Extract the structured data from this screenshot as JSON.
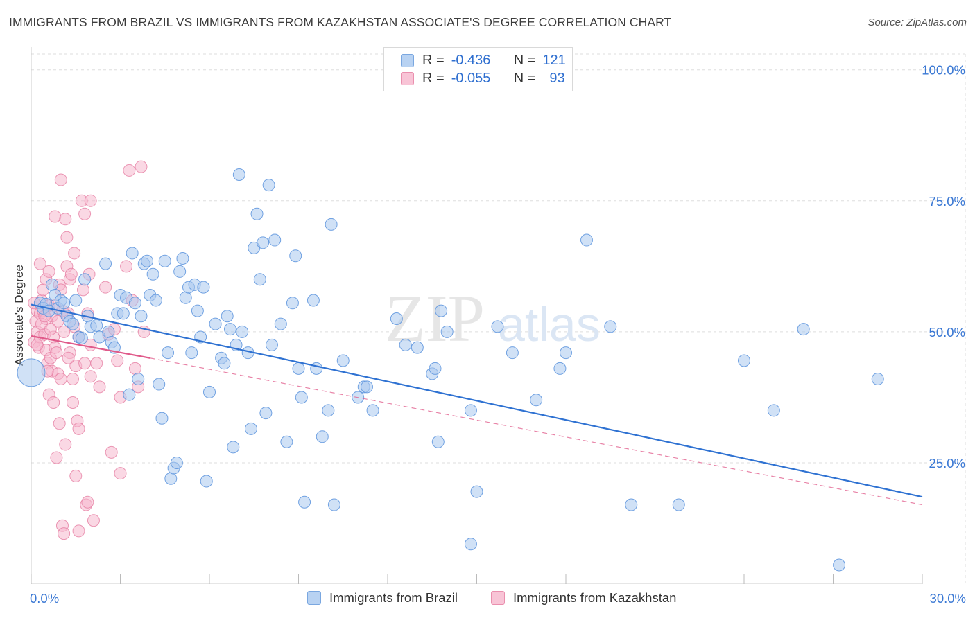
{
  "title": "IMMIGRANTS FROM BRAZIL VS IMMIGRANTS FROM KAZAKHSTAN ASSOCIATE'S DEGREE CORRELATION CHART",
  "source": "Source: ZipAtlas.com",
  "watermark": {
    "zip": "ZIP",
    "atlas": "atlas"
  },
  "colors": {
    "brazil_fill": "#a9c8ef",
    "brazil_stroke": "#5b93dd",
    "brazil_line": "#2f72d2",
    "kaz_fill": "#f5b8cd",
    "kaz_stroke": "#e67ea3",
    "kaz_line": "#e05a8a",
    "axis_text": "#3a78d4",
    "grid": "#dddddd"
  },
  "legend": {
    "r_label": "R =",
    "n_label": "N =",
    "brazil": {
      "r": "-0.436",
      "n": "121"
    },
    "kazakhstan": {
      "r": "-0.055",
      "n": "93"
    }
  },
  "series_labels": {
    "brazil": "Immigrants from Brazil",
    "kazakhstan": "Immigrants from Kazakhstan"
  },
  "chart_data": {
    "type": "scatter",
    "title": "IMMIGRANTS FROM BRAZIL VS IMMIGRANTS FROM KAZAKHSTAN ASSOCIATE'S DEGREE CORRELATION CHART",
    "xlabel": "",
    "ylabel": "Associate's Degree",
    "xlim": [
      0,
      30
    ],
    "ylim": [
      2,
      103
    ],
    "x_tick_labels": [
      "0.0%",
      "30.0%"
    ],
    "y_ticks": [
      25,
      50,
      75,
      100
    ],
    "y_tick_labels": [
      "25.0%",
      "50.0%",
      "75.0%",
      "100.0%"
    ],
    "grid": true,
    "series": [
      {
        "name": "Immigrants from Brazil",
        "trend": {
          "x": [
            0,
            30
          ],
          "y": [
            55.2,
            18.5
          ]
        },
        "points": [
          [
            0.0,
            42.2
          ],
          [
            0.3,
            55.5
          ],
          [
            0.4,
            54.5
          ],
          [
            0.5,
            55.3
          ],
          [
            0.6,
            54.0
          ],
          [
            0.7,
            59.0
          ],
          [
            0.8,
            57.0
          ],
          [
            0.9,
            54.5
          ],
          [
            1.0,
            56.0
          ],
          [
            1.1,
            55.5
          ],
          [
            1.2,
            53.0
          ],
          [
            1.3,
            52.0
          ],
          [
            1.4,
            51.5
          ],
          [
            1.5,
            56.0
          ],
          [
            1.6,
            49.0
          ],
          [
            1.7,
            48.8
          ],
          [
            1.8,
            60.0
          ],
          [
            1.9,
            53.0
          ],
          [
            2.0,
            51.0
          ],
          [
            2.2,
            51.2
          ],
          [
            2.3,
            49.0
          ],
          [
            2.5,
            63.0
          ],
          [
            2.6,
            50.0
          ],
          [
            2.7,
            48.0
          ],
          [
            2.8,
            47.0
          ],
          [
            2.9,
            53.5
          ],
          [
            3.0,
            57.0
          ],
          [
            3.1,
            53.5
          ],
          [
            3.2,
            56.5
          ],
          [
            3.3,
            38.0
          ],
          [
            3.4,
            65.0
          ],
          [
            3.5,
            55.5
          ],
          [
            3.6,
            41.0
          ],
          [
            3.7,
            53.0
          ],
          [
            3.8,
            63.0
          ],
          [
            3.9,
            63.5
          ],
          [
            4.0,
            57.0
          ],
          [
            4.1,
            61.0
          ],
          [
            4.2,
            56.0
          ],
          [
            4.3,
            40.0
          ],
          [
            4.4,
            33.5
          ],
          [
            4.5,
            63.5
          ],
          [
            4.6,
            46.0
          ],
          [
            4.7,
            22.0
          ],
          [
            4.8,
            24.0
          ],
          [
            4.9,
            25.0
          ],
          [
            5.0,
            61.5
          ],
          [
            5.1,
            64.0
          ],
          [
            5.2,
            56.5
          ],
          [
            5.3,
            58.5
          ],
          [
            5.4,
            46.0
          ],
          [
            5.5,
            59.0
          ],
          [
            5.6,
            54.0
          ],
          [
            5.7,
            49.0
          ],
          [
            5.8,
            58.5
          ],
          [
            5.9,
            21.5
          ],
          [
            6.0,
            38.5
          ],
          [
            6.2,
            51.5
          ],
          [
            6.4,
            45.0
          ],
          [
            6.5,
            44.0
          ],
          [
            6.6,
            53.0
          ],
          [
            6.7,
            50.5
          ],
          [
            6.8,
            28.0
          ],
          [
            6.9,
            47.5
          ],
          [
            7.0,
            80.0
          ],
          [
            7.1,
            50.0
          ],
          [
            7.3,
            46.0
          ],
          [
            7.4,
            31.5
          ],
          [
            7.5,
            66.0
          ],
          [
            7.6,
            72.5
          ],
          [
            7.7,
            60.0
          ],
          [
            7.8,
            67.0
          ],
          [
            7.9,
            34.5
          ],
          [
            8.0,
            78.0
          ],
          [
            8.1,
            47.5
          ],
          [
            8.2,
            67.5
          ],
          [
            8.4,
            51.5
          ],
          [
            8.6,
            29.0
          ],
          [
            8.8,
            55.5
          ],
          [
            8.9,
            64.5
          ],
          [
            9.0,
            43.0
          ],
          [
            9.1,
            37.5
          ],
          [
            9.2,
            17.5
          ],
          [
            9.5,
            56.0
          ],
          [
            9.6,
            43.0
          ],
          [
            9.8,
            30.0
          ],
          [
            10.0,
            35.0
          ],
          [
            10.1,
            70.5
          ],
          [
            10.2,
            17.0
          ],
          [
            10.5,
            44.5
          ],
          [
            11.0,
            37.5
          ],
          [
            11.2,
            39.5
          ],
          [
            11.5,
            35.0
          ],
          [
            11.3,
            39.5
          ],
          [
            12.3,
            52.5
          ],
          [
            12.6,
            47.5
          ],
          [
            13.0,
            47.0
          ],
          [
            13.5,
            42.0
          ],
          [
            13.6,
            43.0
          ],
          [
            13.8,
            54.0
          ],
          [
            13.7,
            29.0
          ],
          [
            14.0,
            50.0
          ],
          [
            14.8,
            35.0
          ],
          [
            14.8,
            9.5
          ],
          [
            15.0,
            19.5
          ],
          [
            15.7,
            51.0
          ],
          [
            16.2,
            46.0
          ],
          [
            17.0,
            37.0
          ],
          [
            17.8,
            43.0
          ],
          [
            18.0,
            46.0
          ],
          [
            18.7,
            67.5
          ],
          [
            19.5,
            51.0
          ],
          [
            20.2,
            17.0
          ],
          [
            21.8,
            17.0
          ],
          [
            24.0,
            44.5
          ],
          [
            25.0,
            35.0
          ],
          [
            26.0,
            50.5
          ],
          [
            27.2,
            5.5
          ],
          [
            28.5,
            41.0
          ]
        ]
      },
      {
        "name": "Immigrants from Kazakhstan",
        "trend": {
          "x": [
            0,
            4.0
          ],
          "y": [
            49.2,
            45.0
          ]
        },
        "trend_extended": {
          "x": [
            4.0,
            30
          ],
          "y": [
            45.0,
            17.0
          ]
        },
        "points": [
          [
            0.1,
            48.0
          ],
          [
            0.15,
            52.0
          ],
          [
            0.2,
            50.0
          ],
          [
            0.2,
            54.0
          ],
          [
            0.25,
            47.0
          ],
          [
            0.3,
            49.0
          ],
          [
            0.3,
            53.5
          ],
          [
            0.3,
            63.0
          ],
          [
            0.35,
            56.0
          ],
          [
            0.4,
            54.0
          ],
          [
            0.4,
            58.0
          ],
          [
            0.45,
            49.5
          ],
          [
            0.5,
            46.5
          ],
          [
            0.5,
            52.5
          ],
          [
            0.5,
            60.0
          ],
          [
            0.55,
            44.0
          ],
          [
            0.6,
            38.0
          ],
          [
            0.6,
            55.0
          ],
          [
            0.6,
            61.5
          ],
          [
            0.65,
            45.0
          ],
          [
            0.7,
            42.5
          ],
          [
            0.7,
            53.0
          ],
          [
            0.75,
            49.0
          ],
          [
            0.75,
            36.5
          ],
          [
            0.8,
            47.0
          ],
          [
            0.8,
            55.0
          ],
          [
            0.8,
            72.0
          ],
          [
            0.85,
            26.0
          ],
          [
            0.9,
            42.0
          ],
          [
            0.9,
            52.0
          ],
          [
            0.95,
            32.5
          ],
          [
            0.95,
            59.0
          ],
          [
            1.0,
            79.0
          ],
          [
            1.0,
            41.0
          ],
          [
            1.0,
            58.0
          ],
          [
            1.05,
            13.0
          ],
          [
            1.1,
            50.0
          ],
          [
            1.1,
            11.5
          ],
          [
            1.15,
            71.5
          ],
          [
            1.15,
            28.5
          ],
          [
            1.2,
            68.0
          ],
          [
            1.2,
            62.5
          ],
          [
            1.25,
            53.5
          ],
          [
            1.3,
            60.0
          ],
          [
            1.3,
            46.0
          ],
          [
            1.35,
            61.0
          ],
          [
            1.4,
            36.5
          ],
          [
            1.4,
            41.0
          ],
          [
            1.45,
            65.0
          ],
          [
            1.5,
            43.5
          ],
          [
            1.5,
            22.5
          ],
          [
            1.55,
            33.0
          ],
          [
            1.6,
            31.5
          ],
          [
            1.6,
            12.0
          ],
          [
            1.6,
            49.0
          ],
          [
            1.7,
            75.0
          ],
          [
            1.75,
            58.0
          ],
          [
            1.8,
            44.0
          ],
          [
            1.8,
            72.5
          ],
          [
            1.85,
            17.0
          ],
          [
            1.9,
            53.5
          ],
          [
            1.9,
            17.5
          ],
          [
            1.95,
            61.0
          ],
          [
            2.0,
            47.5
          ],
          [
            2.0,
            41.5
          ],
          [
            2.0,
            75.0
          ],
          [
            2.1,
            14.0
          ],
          [
            2.2,
            44.0
          ],
          [
            2.3,
            39.5
          ],
          [
            2.5,
            58.5
          ],
          [
            2.6,
            49.5
          ],
          [
            2.7,
            27.0
          ],
          [
            2.8,
            50.5
          ],
          [
            2.9,
            44.5
          ],
          [
            3.0,
            23.0
          ],
          [
            3.0,
            37.5
          ],
          [
            3.2,
            62.5
          ],
          [
            3.3,
            80.8
          ],
          [
            3.4,
            56.0
          ],
          [
            3.5,
            43.0
          ],
          [
            3.6,
            39.5
          ],
          [
            3.7,
            81.5
          ],
          [
            3.8,
            50.0
          ],
          [
            0.1,
            55.5
          ],
          [
            0.2,
            47.5
          ],
          [
            0.35,
            51.5
          ],
          [
            0.45,
            53.0
          ],
          [
            0.55,
            42.5
          ],
          [
            0.65,
            50.5
          ],
          [
            0.85,
            46.0
          ],
          [
            1.05,
            54.0
          ],
          [
            1.25,
            45.0
          ],
          [
            1.45,
            51.0
          ]
        ]
      }
    ]
  }
}
